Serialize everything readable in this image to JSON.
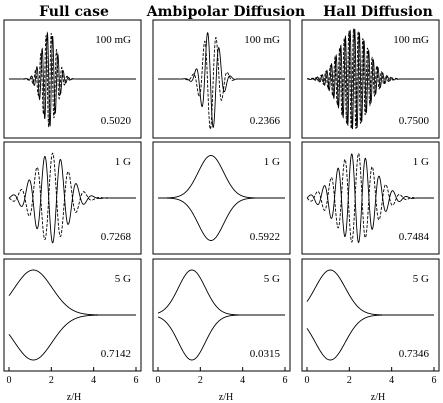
{
  "figure": {
    "columns": [
      "Full case",
      "Ambipolar Diffusion",
      "Hall Diffusion"
    ],
    "xlabel": "z/H",
    "xticks": [
      "0",
      "2",
      "4",
      "6"
    ]
  },
  "chart_data": {
    "type": "line",
    "xlabel": "z/H",
    "xlim": [
      0,
      6
    ],
    "grid": false,
    "panels": [
      {
        "column": "Full case",
        "field": "100 mG",
        "value": "0.5020",
        "profile": {
          "type": "packet",
          "center": 1.9,
          "width": 0.5,
          "wavelength": 0.25,
          "amplitude": 0.9,
          "end": 3.2
        }
      },
      {
        "column": "Ambipolar Diffusion",
        "field": "100 mG",
        "value": "0.2366",
        "profile": {
          "type": "packet",
          "center": 2.5,
          "width": 0.55,
          "wavelength": 0.55,
          "amplitude": 0.95,
          "end": 3.6
        }
      },
      {
        "column": "Hall Diffusion",
        "field": "100 mG",
        "value": "0.7500",
        "profile": {
          "type": "packet",
          "center": 2.2,
          "width": 0.95,
          "wavelength": 0.22,
          "amplitude": 0.95,
          "end": 4.3
        }
      },
      {
        "column": "Full case",
        "field": "1 G",
        "value": "0.7268",
        "profile": {
          "type": "lobes",
          "center": 2.0,
          "width": 1.1,
          "wavelength": 0.75,
          "amplitude": 0.9,
          "end": 4.7
        }
      },
      {
        "column": "Ambipolar Diffusion",
        "field": "1 G",
        "value": "0.5922",
        "profile": {
          "type": "envelope",
          "center": 2.5,
          "width": 0.85,
          "amplitude": 0.85,
          "end": 6.0
        }
      },
      {
        "column": "Hall Diffusion",
        "field": "1 G",
        "value": "0.7484",
        "profile": {
          "type": "lobes",
          "center": 2.3,
          "width": 1.3,
          "wavelength": 0.65,
          "amplitude": 0.9,
          "end": 5.0
        }
      },
      {
        "column": "Full case",
        "field": "5 G",
        "value": "0.7142",
        "profile": {
          "type": "envelope",
          "center": 1.15,
          "width": 1.25,
          "amplitude": 0.9,
          "end": 6.0
        }
      },
      {
        "column": "Ambipolar Diffusion",
        "field": "5 G",
        "value": "0.0315",
        "profile": {
          "type": "envelope",
          "center": 1.6,
          "width": 0.9,
          "amplitude": 0.9,
          "end": 6.0
        }
      },
      {
        "column": "Hall Diffusion",
        "field": "5 G",
        "value": "0.7346",
        "profile": {
          "type": "envelope",
          "center": 1.1,
          "width": 1.0,
          "amplitude": 0.9,
          "end": 6.0
        }
      }
    ]
  }
}
